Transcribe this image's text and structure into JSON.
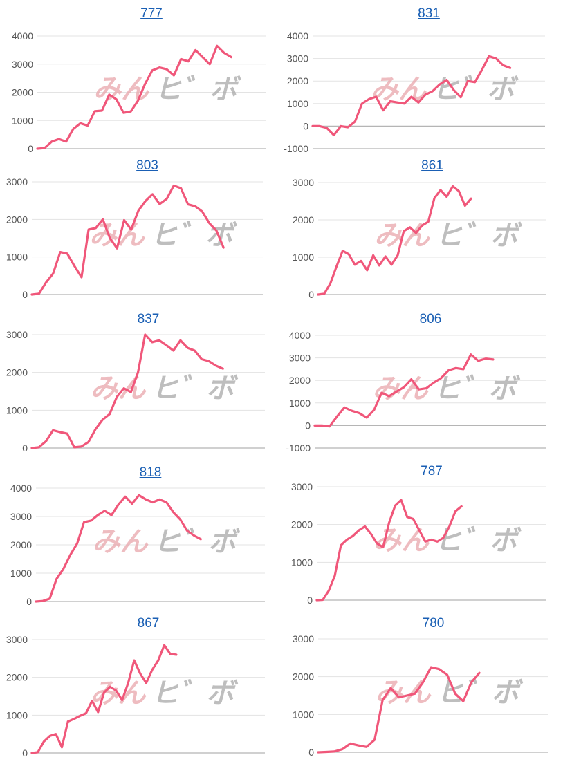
{
  "watermark": {
    "left": "みん",
    "right": "ヒ゛ボ"
  },
  "colors": {
    "line": "#f0577a",
    "grid": "#e3e3e3",
    "axis": "#b5b5b5",
    "title": "#1a5fb4",
    "wm_pink": "#e8a5ab",
    "wm_gray": "#a8a8a8"
  },
  "chart_data": [
    {
      "type": "line",
      "title": "777",
      "yticks": [
        0,
        1000,
        2000,
        3000,
        4000
      ],
      "ylim": [
        0,
        4000
      ],
      "values": [
        0,
        20,
        250,
        340,
        250,
        700,
        900,
        820,
        1330,
        1350,
        1920,
        1750,
        1270,
        1320,
        1700,
        2300,
        2780,
        2880,
        2820,
        2600,
        3180,
        3100,
        3500,
        3250,
        3000,
        3650,
        3400,
        3250
      ]
    },
    {
      "type": "line",
      "title": "831",
      "yticks": [
        -1000,
        0,
        1000,
        2000,
        3000,
        4000
      ],
      "ylim": [
        -1000,
        4000
      ],
      "values": [
        0,
        0,
        -80,
        -400,
        0,
        -50,
        200,
        1000,
        1200,
        1300,
        700,
        1100,
        1050,
        1000,
        1300,
        1050,
        1400,
        1550,
        1850,
        2050,
        1600,
        1280,
        2000,
        1950,
        2500,
        3100,
        3000,
        2700,
        2580
      ]
    },
    {
      "type": "line",
      "title": "803",
      "yticks": [
        0,
        1000,
        2000,
        3000
      ],
      "ylim": [
        0,
        3000
      ],
      "values": [
        0,
        20,
        320,
        560,
        1130,
        1090,
        760,
        460,
        1730,
        1770,
        2000,
        1500,
        1230,
        1980,
        1730,
        2230,
        2490,
        2670,
        2410,
        2550,
        2900,
        2830,
        2400,
        2350,
        2210,
        1900,
        1700,
        1250
      ]
    },
    {
      "type": "line",
      "title": "861",
      "yticks": [
        0,
        1000,
        2000,
        3000
      ],
      "ylim": [
        0,
        3000
      ],
      "values": [
        0,
        20,
        300,
        750,
        1170,
        1080,
        800,
        900,
        650,
        1050,
        780,
        1020,
        800,
        1050,
        1700,
        1800,
        1650,
        1850,
        1950,
        2580,
        2800,
        2620,
        2900,
        2770,
        2380,
        2570
      ]
    },
    {
      "type": "line",
      "title": "837",
      "yticks": [
        0,
        1000,
        2000,
        3000
      ],
      "ylim": [
        0,
        3000
      ],
      "values": [
        0,
        20,
        180,
        470,
        420,
        380,
        20,
        40,
        160,
        500,
        750,
        900,
        1350,
        1580,
        1480,
        2000,
        3000,
        2800,
        2850,
        2720,
        2580,
        2850,
        2650,
        2580,
        2350,
        2300,
        2180,
        2100
      ]
    },
    {
      "type": "line",
      "title": "806",
      "yticks": [
        -1000,
        0,
        1000,
        2000,
        3000,
        4000
      ],
      "ylim": [
        -1000,
        4000
      ],
      "values": [
        0,
        0,
        -40,
        400,
        800,
        650,
        550,
        350,
        700,
        1450,
        1300,
        1500,
        1700,
        2050,
        1600,
        1650,
        1900,
        2100,
        2450,
        2550,
        2500,
        3150,
        2870,
        2970,
        2930
      ]
    },
    {
      "type": "line",
      "title": "818",
      "yticks": [
        0,
        1000,
        2000,
        3000,
        4000
      ],
      "ylim": [
        0,
        4000
      ],
      "values": [
        0,
        20,
        100,
        800,
        1150,
        1650,
        2050,
        2800,
        2850,
        3050,
        3200,
        3050,
        3420,
        3700,
        3450,
        3750,
        3600,
        3500,
        3600,
        3500,
        3150,
        2900,
        2500,
        2330,
        2200
      ]
    },
    {
      "type": "line",
      "title": "787",
      "yticks": [
        0,
        1000,
        2000,
        3000
      ],
      "ylim": [
        0,
        3000
      ],
      "values": [
        0,
        10,
        250,
        650,
        1450,
        1600,
        1700,
        1850,
        1950,
        1750,
        1500,
        1400,
        2050,
        2500,
        2650,
        2200,
        2150,
        1850,
        1550,
        1600,
        1550,
        1650,
        1950,
        2350,
        2480
      ]
    },
    {
      "type": "line",
      "title": "867",
      "yticks": [
        0,
        1000,
        2000,
        3000
      ],
      "ylim": [
        0,
        3000
      ],
      "values": [
        0,
        20,
        300,
        450,
        500,
        150,
        830,
        900,
        980,
        1050,
        1380,
        1080,
        1600,
        1750,
        1650,
        1400,
        1850,
        2450,
        2100,
        1850,
        2200,
        2450,
        2850,
        2620,
        2600
      ]
    },
    {
      "type": "line",
      "title": "780",
      "yticks": [
        0,
        1000,
        2000,
        3000
      ],
      "ylim": [
        0,
        3000
      ],
      "values": [
        0,
        10,
        20,
        80,
        230,
        180,
        140,
        330,
        1380,
        1700,
        1450,
        1500,
        1550,
        1850,
        2250,
        2200,
        2050,
        1550,
        1350,
        1850,
        2100
      ]
    }
  ]
}
